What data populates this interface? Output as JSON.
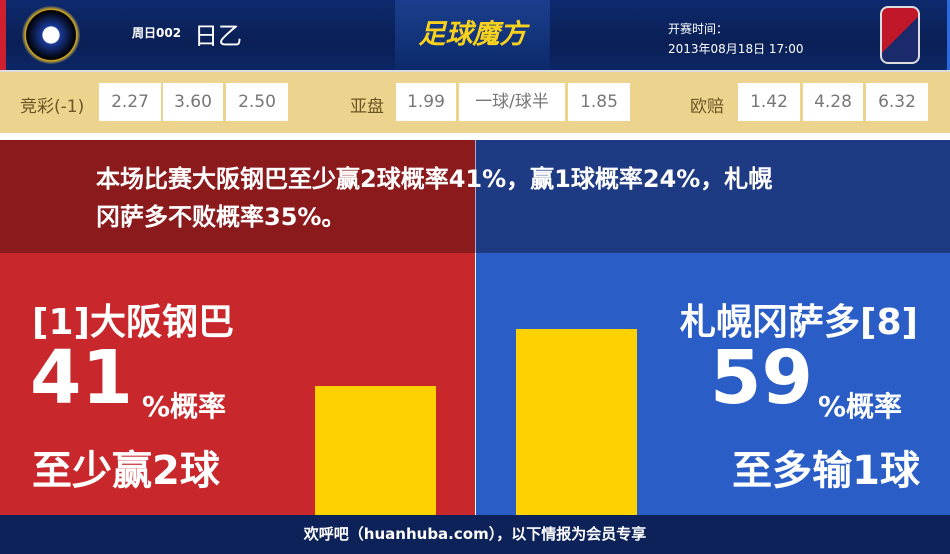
{
  "header": {
    "round": "周日002",
    "league": "日乙",
    "brand": "足球魔方",
    "kickoff_label": "开赛时间：",
    "kickoff_time": "2013年08月18日 17:00",
    "home_logo": "GAMBA OSAKA",
    "away_logo": "CS CONSADOLE SAPPORO"
  },
  "odds": {
    "jc_label": "竞彩(-1)",
    "jc": [
      "2.27",
      "3.60",
      "2.50"
    ],
    "ah_label": "亚盘",
    "ah": [
      "1.99",
      "一球/球半",
      "1.85"
    ],
    "eu_label": "欧赔",
    "eu": [
      "1.42",
      "4.28",
      "6.32"
    ]
  },
  "summary": "本场比赛大阪钢巴至少赢2球概率41%，赢1球概率24%，札幌冈萨多不败概率35%。",
  "home": {
    "team": "[1]大阪钢巴",
    "percent": "41",
    "percent_label": "%概率",
    "desc": "至少赢2球",
    "value": 41
  },
  "away": {
    "team": "札幌冈萨多[8]",
    "percent": "59",
    "percent_label": "%概率",
    "desc": "至多输1球",
    "value": 59
  },
  "colors": {
    "home": "#c8282c",
    "away": "#2a5ec6",
    "bar": "#fdd200"
  },
  "footer": "欢呼吧（huanhuba.com），以下情报为会员专享"
}
